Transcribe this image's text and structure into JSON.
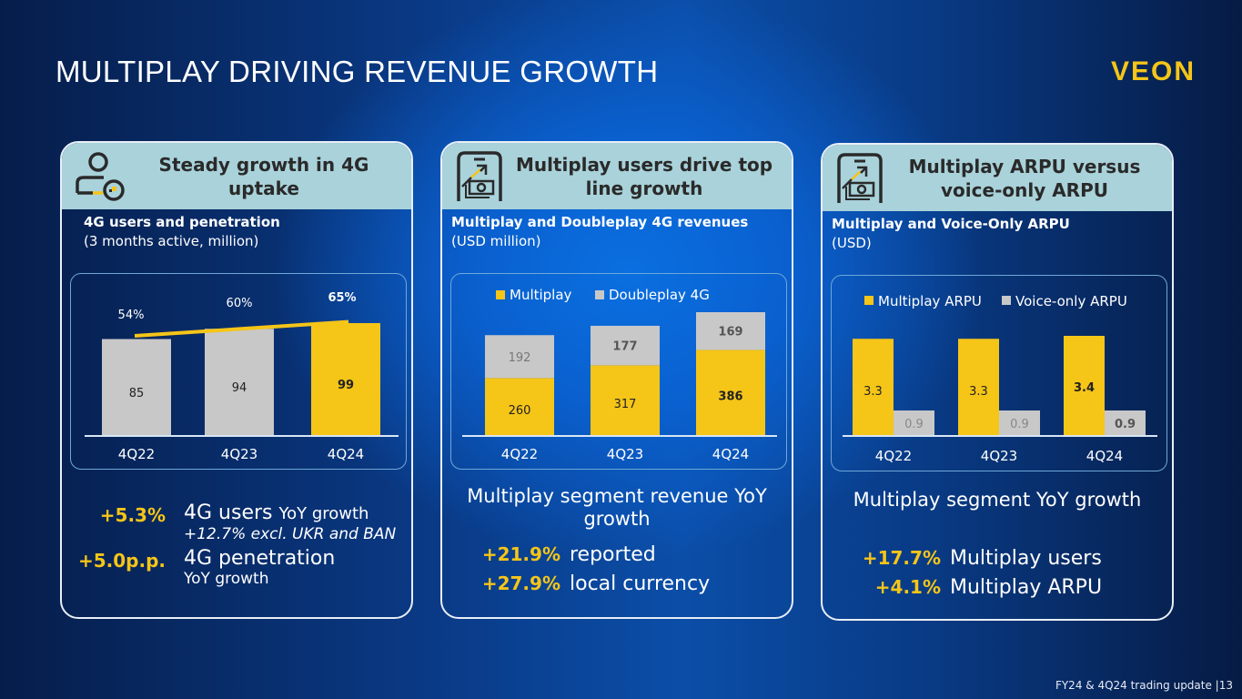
{
  "header": {
    "title": "MULTIPLAY DRIVING REVENUE GROWTH",
    "logo": "VEON"
  },
  "footer": {
    "text": "FY24 & 4Q24 trading update |13"
  },
  "colors": {
    "accent": "#f5c518",
    "grey_bar": "#c8c8c8",
    "card_header": "#a9d2da",
    "text_dark": "#2a2a2a"
  },
  "cards": [
    {
      "icon": "user-4g-icon",
      "title": "Steady growth in 4G uptake",
      "subtitle": "4G users and penetration",
      "unit": "(3 months active, million)",
      "stats": [
        {
          "value": "+5.3%",
          "label": "4G users",
          "label_small": "YoY growth",
          "note": "+12.7% excl. UKR and BAN"
        },
        {
          "value": "+5.0p.p.",
          "label": "4G penetration",
          "note": "YoY growth"
        }
      ]
    },
    {
      "icon": "phone-money-growth-icon",
      "title": "Multiplay users drive top line growth",
      "subtitle": "Multiplay and Doubleplay 4G revenues",
      "unit": "(USD million)",
      "segment_title": "Multiplay segment revenue YoY growth",
      "stats": [
        {
          "value": "+21.9%",
          "label": "reported"
        },
        {
          "value": "+27.9%",
          "label": "local currency"
        }
      ]
    },
    {
      "icon": "phone-money-growth-icon",
      "title": "Multiplay ARPU versus voice-only ARPU",
      "subtitle": "Multiplay and Voice-Only ARPU",
      "unit": "(USD)",
      "segment_title": "Multiplay segment YoY growth",
      "stats": [
        {
          "value": "+17.7%",
          "label": "Multiplay users"
        },
        {
          "value": "+4.1%",
          "label": "Multiplay ARPU"
        }
      ]
    }
  ],
  "chart_data": [
    {
      "type": "bar",
      "title": "4G users and penetration",
      "categories": [
        "4Q22",
        "4Q23",
        "4Q24"
      ],
      "series": [
        {
          "name": "4G users (million)",
          "values": [
            85,
            94,
            99
          ],
          "labels": [
            "85",
            "94",
            "99"
          ]
        },
        {
          "name": "4G penetration",
          "type": "line",
          "values": [
            54,
            60,
            65
          ],
          "labels": [
            "54%",
            "60%",
            "65%"
          ]
        }
      ],
      "highlight_index": 2,
      "ylim": [
        0,
        110
      ],
      "grid": false,
      "legend": "none"
    },
    {
      "type": "bar",
      "stacked": true,
      "title": "Multiplay and Doubleplay 4G revenues (USD million)",
      "categories": [
        "4Q22",
        "4Q23",
        "4Q24"
      ],
      "series": [
        {
          "name": "Multiplay",
          "values": [
            260,
            317,
            386
          ],
          "color": "#f5c518"
        },
        {
          "name": "Doubleplay 4G",
          "values": [
            192,
            177,
            169
          ],
          "color": "#c8c8c8"
        }
      ],
      "ylim": [
        0,
        600
      ],
      "grid": false,
      "legend": "top"
    },
    {
      "type": "bar",
      "title": "Multiplay and Voice-Only ARPU (USD)",
      "categories": [
        "4Q22",
        "4Q23",
        "4Q24"
      ],
      "series": [
        {
          "name": "Multiplay ARPU",
          "values": [
            3.3,
            3.3,
            3.4
          ],
          "labels": [
            "3.3",
            "3.3",
            "3.4"
          ],
          "color": "#f5c518"
        },
        {
          "name": "Voice-only ARPU",
          "values": [
            0.9,
            0.9,
            0.9
          ],
          "labels": [
            "0.9",
            "0.9",
            "0.9"
          ],
          "color": "#c8c8c8"
        }
      ],
      "ylim": [
        0,
        4
      ],
      "grid": false,
      "legend": "top"
    }
  ]
}
